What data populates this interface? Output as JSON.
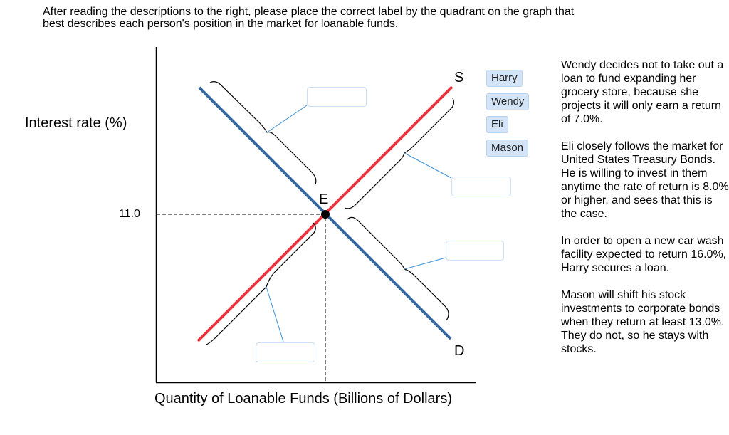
{
  "instructions": {
    "line1": "After reading the descriptions to the right, please place the correct label by the quadrant on the graph that",
    "line2": "best describes each person's position in the market for loanable funds."
  },
  "graph": {
    "y_axis_label": "Interest rate (%)",
    "x_axis_label": "Quantity of Loanable Funds (Billions of Dollars)",
    "equilibrium_rate": "11.0",
    "equilibrium_label": "E",
    "supply_label": "S",
    "demand_label": "D",
    "colors": {
      "supply": "#e8343e",
      "demand": "#33679e",
      "bracket": "#000000",
      "leader": "#3a8fd6",
      "chip": "#d3e4f7"
    }
  },
  "labels": [
    "Harry",
    "Wendy",
    "Eli",
    "Mason"
  ],
  "descriptions": [
    "Wendy decides not to take out a loan to fund expanding her grocery store, because she projects it will only earn a return of 7.0%.",
    "Eli closely follows the market for United States Treasury Bonds. He is willing to invest in them anytime the rate of return is 8.0% or higher, and sees that this is the case.",
    "In order to open a new car wash facility expected to return 16.0%, Harry secures a loan.",
    "Mason will shift his stock investments to corporate bonds when they return at least 13.0%. They do not, so he stays with stocks."
  ]
}
